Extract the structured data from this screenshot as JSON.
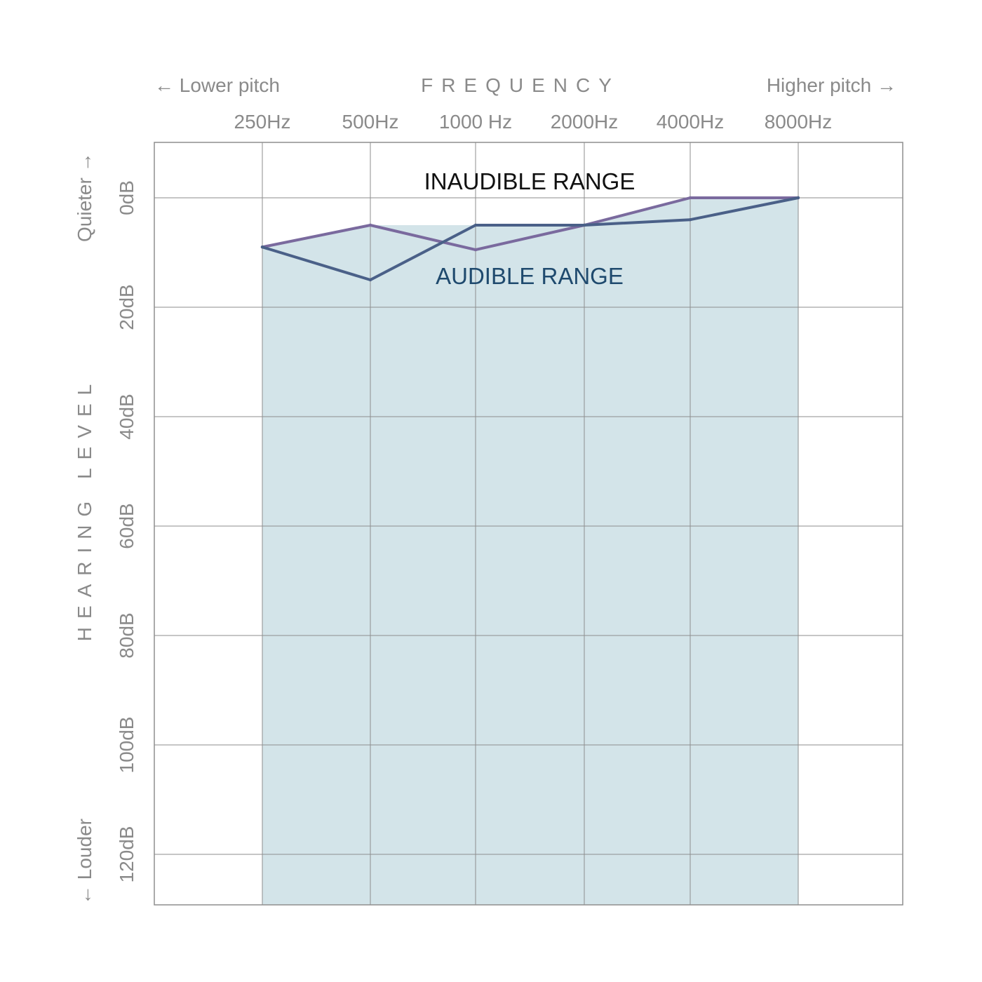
{
  "chart_data": {
    "type": "line",
    "title": "FREQUENCY",
    "x_direction_left": "← Lower pitch",
    "x_direction_right": "Higher pitch →",
    "ylabel": "HEARING LEVEL",
    "y_direction_top": "Quieter →",
    "y_direction_bottom": "← Louder",
    "categories": [
      "250Hz",
      "500Hz",
      "1000 Hz",
      "2000Hz",
      "4000Hz",
      "8000Hz"
    ],
    "y_ticks": [
      0,
      20,
      40,
      60,
      80,
      100,
      120
    ],
    "y_tick_labels": [
      "0dB",
      "20dB",
      "40dB",
      "60dB",
      "80dB",
      "100dB",
      "120dB"
    ],
    "ylim": [
      -10,
      130
    ],
    "y_inverted": true,
    "series": [
      {
        "values": [
          9,
          5,
          9.5,
          5,
          0,
          0
        ],
        "color": "#7a6a9e"
      },
      {
        "values": [
          9,
          15,
          5,
          5,
          4,
          0
        ],
        "color": "#4a6088"
      }
    ],
    "annotations": [
      {
        "text": "INAUDIBLE RANGE",
        "color": "#111111"
      },
      {
        "text": "AUDIBLE RANGE",
        "color": "#1f4a6e"
      }
    ],
    "audible_fill_color": "#d3e4e9",
    "grid": true
  }
}
